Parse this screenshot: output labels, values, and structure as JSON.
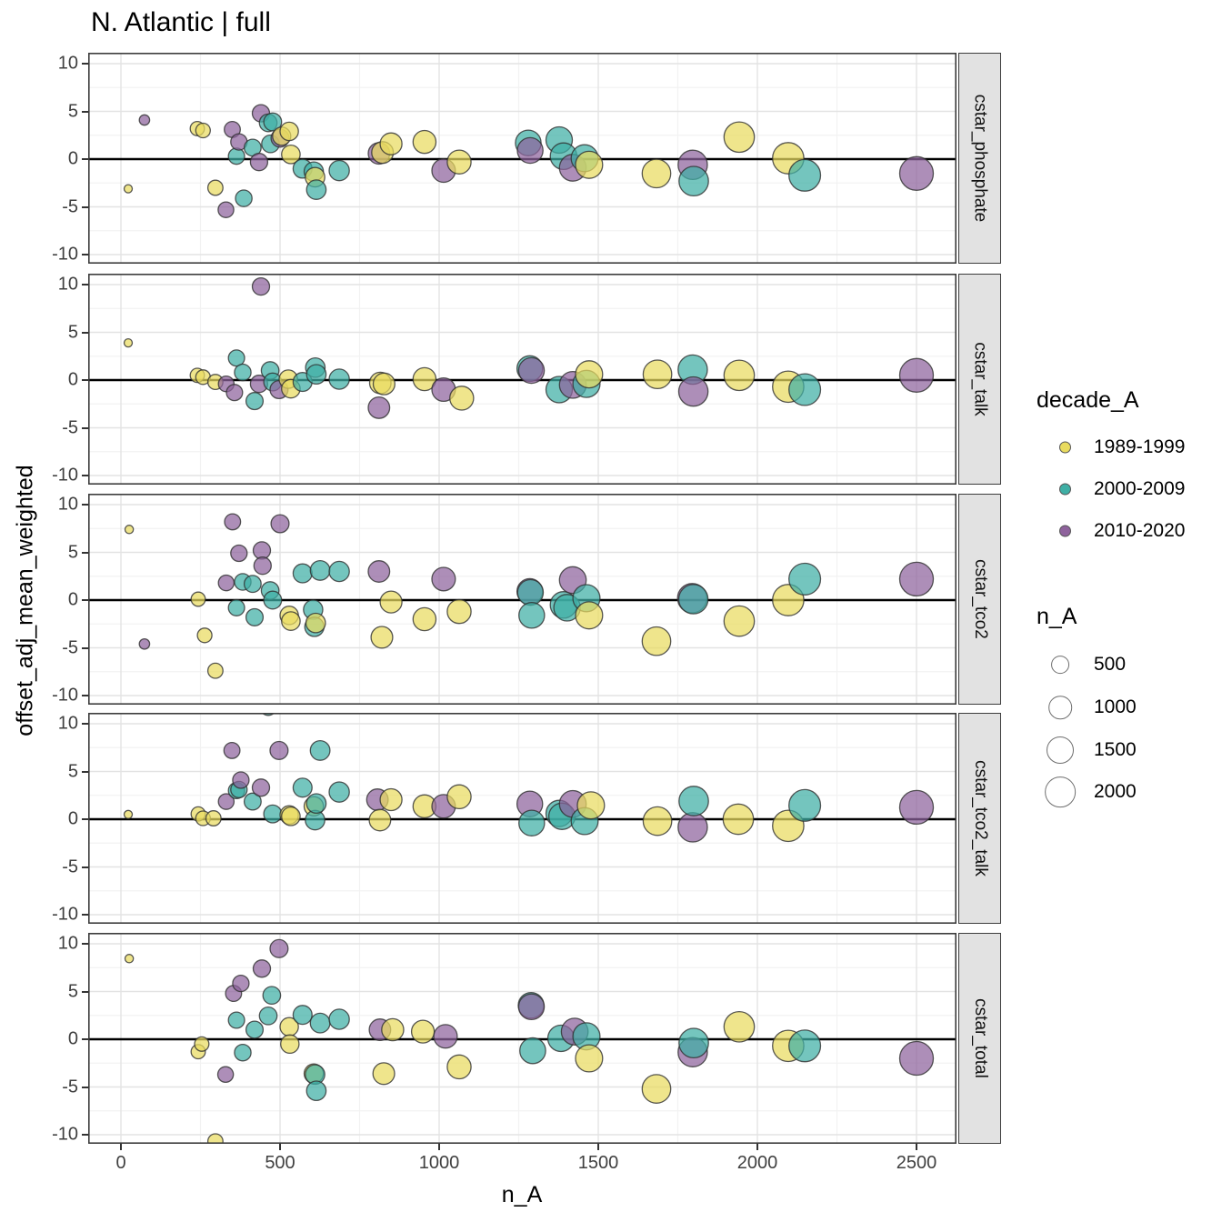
{
  "title": "N. Atlantic | full",
  "axes": {
    "x_label": "n_A",
    "y_label": "offset_adj_mean_weighted",
    "x_ticks": [
      0,
      500,
      1000,
      1500,
      2000,
      2500
    ],
    "y_ticks": [
      10,
      5,
      0,
      -5,
      -10
    ]
  },
  "legend": {
    "decade_title": "decade_A",
    "decades": [
      {
        "label": "1989-1999",
        "color": "#e9db5f"
      },
      {
        "label": "2000-2009",
        "color": "#3fafa5"
      },
      {
        "label": "2010-2020",
        "color": "#8e629c"
      }
    ],
    "size_title": "n_A",
    "sizes": [
      {
        "label": "500",
        "value": 500
      },
      {
        "label": "1000",
        "value": 1000
      },
      {
        "label": "1500",
        "value": 1500
      },
      {
        "label": "2000",
        "value": 2000
      }
    ]
  },
  "chart_data": {
    "type": "scatter",
    "title": "N. Atlantic | full",
    "xlabel": "n_A",
    "ylabel": "offset_adj_mean_weighted",
    "xlim": [
      -100,
      2626
    ],
    "ylim": [
      -11,
      11.1
    ],
    "grid": true,
    "zero_line": true,
    "size_encoding": "point size = n_A (same as x value)",
    "decade_names": [
      "1989-1999",
      "2000-2009",
      "2010-2020"
    ],
    "point_format": "[n_A, offset_adj_mean_weighted, decade_index]",
    "facets": [
      {
        "label": "cstar_phosphate",
        "points": [
          [
            23,
            -3.1,
            0
          ],
          [
            74,
            4.1,
            2
          ],
          [
            240,
            3.2,
            0
          ],
          [
            258,
            3.0,
            0
          ],
          [
            297,
            -3.0,
            0
          ],
          [
            330,
            -5.3,
            2
          ],
          [
            350,
            3.1,
            2
          ],
          [
            363,
            0.3,
            1
          ],
          [
            371,
            1.8,
            2
          ],
          [
            386,
            -4.1,
            1
          ],
          [
            414,
            1.2,
            1
          ],
          [
            434,
            -0.3,
            2
          ],
          [
            440,
            4.8,
            2
          ],
          [
            463,
            3.8,
            1
          ],
          [
            470,
            1.6,
            1
          ],
          [
            477,
            3.9,
            1
          ],
          [
            500,
            2.2,
            2
          ],
          [
            505,
            2.4,
            0
          ],
          [
            529,
            2.9,
            0
          ],
          [
            534,
            0.5,
            0
          ],
          [
            571,
            -1.0,
            1
          ],
          [
            606,
            -1.3,
            1
          ],
          [
            610,
            -1.9,
            0
          ],
          [
            614,
            -3.2,
            1
          ],
          [
            686,
            -1.2,
            1
          ],
          [
            811,
            0.6,
            2
          ],
          [
            822,
            0.7,
            0
          ],
          [
            849,
            1.6,
            0
          ],
          [
            954,
            1.8,
            0
          ],
          [
            1014,
            -1.2,
            2
          ],
          [
            1063,
            -0.3,
            0
          ],
          [
            1280,
            1.7,
            1
          ],
          [
            1286,
            0.9,
            2
          ],
          [
            1377,
            2.0,
            1
          ],
          [
            1391,
            0.3,
            1
          ],
          [
            1420,
            -0.9,
            2
          ],
          [
            1457,
            0.1,
            1
          ],
          [
            1471,
            -0.6,
            0
          ],
          [
            1683,
            -1.5,
            0
          ],
          [
            1797,
            -0.6,
            2
          ],
          [
            1800,
            -2.3,
            1
          ],
          [
            1943,
            2.3,
            0
          ],
          [
            2097,
            0.1,
            0
          ],
          [
            2149,
            -1.7,
            1
          ],
          [
            2500,
            -1.5,
            2
          ]
        ]
      },
      {
        "label": "cstar_talk",
        "points": [
          [
            23,
            3.9,
            0
          ],
          [
            240,
            0.5,
            0
          ],
          [
            258,
            0.3,
            0
          ],
          [
            297,
            -0.2,
            0
          ],
          [
            331,
            -0.4,
            2
          ],
          [
            357,
            -1.3,
            2
          ],
          [
            363,
            2.3,
            1
          ],
          [
            383,
            0.8,
            1
          ],
          [
            420,
            -2.2,
            1
          ],
          [
            434,
            -0.4,
            2
          ],
          [
            440,
            9.8,
            2
          ],
          [
            469,
            1.0,
            1
          ],
          [
            477,
            -0.2,
            1
          ],
          [
            497,
            -1.0,
            2
          ],
          [
            526,
            0.1,
            0
          ],
          [
            534,
            -0.9,
            0
          ],
          [
            571,
            -0.2,
            1
          ],
          [
            611,
            1.3,
            1
          ],
          [
            614,
            0.6,
            1
          ],
          [
            686,
            0.1,
            1
          ],
          [
            811,
            -2.9,
            2
          ],
          [
            815,
            -0.3,
            0
          ],
          [
            827,
            -0.4,
            0
          ],
          [
            954,
            0.1,
            0
          ],
          [
            1014,
            -1.0,
            2
          ],
          [
            1071,
            -1.9,
            0
          ],
          [
            1285,
            1.2,
            1
          ],
          [
            1290,
            1.0,
            2
          ],
          [
            1377,
            -1.0,
            1
          ],
          [
            1420,
            -0.5,
            2
          ],
          [
            1463,
            -0.4,
            1
          ],
          [
            1471,
            0.6,
            0
          ],
          [
            1686,
            0.6,
            0
          ],
          [
            1797,
            1.1,
            1
          ],
          [
            1799,
            -1.2,
            2
          ],
          [
            1943,
            0.5,
            0
          ],
          [
            2097,
            -0.7,
            0
          ],
          [
            2149,
            -1.0,
            1
          ],
          [
            2500,
            0.5,
            2
          ]
        ]
      },
      {
        "label": "cstar_tco2",
        "points": [
          [
            26,
            7.4,
            0
          ],
          [
            74,
            -4.6,
            2
          ],
          [
            243,
            0.1,
            0
          ],
          [
            263,
            -3.7,
            0
          ],
          [
            297,
            -7.4,
            0
          ],
          [
            331,
            1.8,
            2
          ],
          [
            351,
            8.2,
            2
          ],
          [
            363,
            -0.8,
            1
          ],
          [
            371,
            4.9,
            2
          ],
          [
            383,
            1.9,
            1
          ],
          [
            414,
            1.7,
            1
          ],
          [
            420,
            -1.8,
            1
          ],
          [
            443,
            5.2,
            2
          ],
          [
            445,
            3.6,
            2
          ],
          [
            469,
            1.0,
            1
          ],
          [
            477,
            0.0,
            1
          ],
          [
            500,
            8.0,
            2
          ],
          [
            529,
            -1.6,
            0
          ],
          [
            534,
            -2.2,
            0
          ],
          [
            571,
            2.8,
            1
          ],
          [
            604,
            -1.0,
            1
          ],
          [
            608,
            -2.8,
            1
          ],
          [
            612,
            -2.4,
            0
          ],
          [
            626,
            3.1,
            1
          ],
          [
            686,
            3.0,
            1
          ],
          [
            811,
            3.0,
            2
          ],
          [
            820,
            -3.9,
            0
          ],
          [
            849,
            -0.2,
            0
          ],
          [
            954,
            -2.0,
            0
          ],
          [
            1014,
            2.2,
            2
          ],
          [
            1063,
            -1.2,
            0
          ],
          [
            1285,
            0.9,
            2
          ],
          [
            1287,
            0.8,
            1
          ],
          [
            1291,
            -1.6,
            1
          ],
          [
            1391,
            -0.5,
            1
          ],
          [
            1402,
            -0.8,
            1
          ],
          [
            1420,
            2.1,
            2
          ],
          [
            1463,
            0.2,
            1
          ],
          [
            1471,
            -1.6,
            0
          ],
          [
            1683,
            -4.3,
            0
          ],
          [
            1795,
            0.2,
            2
          ],
          [
            1799,
            0.1,
            1
          ],
          [
            1943,
            -2.2,
            0
          ],
          [
            2097,
            0.0,
            0
          ],
          [
            2149,
            2.2,
            1
          ],
          [
            2500,
            2.2,
            2
          ]
        ]
      },
      {
        "label": "cstar_tco2_talk",
        "points": [
          [
            23,
            0.5,
            0
          ],
          [
            243,
            0.55,
            0
          ],
          [
            258,
            0.1,
            0
          ],
          [
            291,
            0.1,
            0
          ],
          [
            331,
            1.85,
            2
          ],
          [
            349,
            7.2,
            2
          ],
          [
            363,
            3.0,
            1
          ],
          [
            371,
            3.1,
            1
          ],
          [
            377,
            4.1,
            2
          ],
          [
            414,
            1.85,
            1
          ],
          [
            440,
            3.3,
            2
          ],
          [
            463,
            11.8,
            1
          ],
          [
            477,
            0.55,
            1
          ],
          [
            497,
            7.2,
            2
          ],
          [
            529,
            0.45,
            0
          ],
          [
            534,
            0.3,
            0
          ],
          [
            571,
            3.3,
            1
          ],
          [
            606,
            1.35,
            0
          ],
          [
            610,
            -0.1,
            1
          ],
          [
            614,
            1.65,
            1
          ],
          [
            626,
            7.2,
            1
          ],
          [
            686,
            2.85,
            1
          ],
          [
            806,
            2.05,
            2
          ],
          [
            814,
            -0.1,
            0
          ],
          [
            849,
            2.05,
            0
          ],
          [
            954,
            1.35,
            0
          ],
          [
            1014,
            1.35,
            2
          ],
          [
            1063,
            2.35,
            0
          ],
          [
            1285,
            1.6,
            2
          ],
          [
            1291,
            -0.4,
            1
          ],
          [
            1377,
            0.6,
            1
          ],
          [
            1386,
            0.3,
            1
          ],
          [
            1420,
            1.6,
            2
          ],
          [
            1457,
            -0.2,
            1
          ],
          [
            1477,
            1.45,
            0
          ],
          [
            1686,
            -0.2,
            0
          ],
          [
            1797,
            -0.85,
            2
          ],
          [
            1800,
            1.9,
            1
          ],
          [
            1940,
            0.0,
            0
          ],
          [
            2097,
            -0.7,
            0
          ],
          [
            2149,
            1.45,
            1
          ],
          [
            2500,
            1.25,
            2
          ]
        ]
      },
      {
        "label": "cstar_total",
        "points": [
          [
            26,
            8.45,
            0
          ],
          [
            243,
            -1.3,
            0
          ],
          [
            254,
            -0.5,
            0
          ],
          [
            297,
            -10.7,
            0
          ],
          [
            329,
            -3.7,
            2
          ],
          [
            354,
            4.8,
            2
          ],
          [
            363,
            2.0,
            1
          ],
          [
            377,
            5.85,
            2
          ],
          [
            383,
            -1.4,
            1
          ],
          [
            420,
            1.0,
            1
          ],
          [
            443,
            7.4,
            2
          ],
          [
            463,
            2.45,
            1
          ],
          [
            474,
            4.6,
            1
          ],
          [
            497,
            9.5,
            2
          ],
          [
            529,
            1.3,
            0
          ],
          [
            531,
            -0.5,
            0
          ],
          [
            571,
            2.55,
            1
          ],
          [
            606,
            -3.6,
            0
          ],
          [
            610,
            -3.7,
            1
          ],
          [
            614,
            -5.4,
            1
          ],
          [
            626,
            1.7,
            1
          ],
          [
            686,
            2.1,
            1
          ],
          [
            814,
            1.0,
            2
          ],
          [
            826,
            -3.6,
            0
          ],
          [
            854,
            1.0,
            0
          ],
          [
            949,
            0.8,
            0
          ],
          [
            1020,
            0.3,
            2
          ],
          [
            1063,
            -2.9,
            0
          ],
          [
            1289,
            3.55,
            1
          ],
          [
            1290,
            3.4,
            2
          ],
          [
            1294,
            -1.2,
            1
          ],
          [
            1383,
            0.1,
            1
          ],
          [
            1426,
            0.8,
            2
          ],
          [
            1463,
            0.3,
            1
          ],
          [
            1471,
            -2.0,
            0
          ],
          [
            1683,
            -5.2,
            0
          ],
          [
            1797,
            -1.35,
            2
          ],
          [
            1800,
            -0.4,
            1
          ],
          [
            1943,
            1.3,
            0
          ],
          [
            2097,
            -0.7,
            0
          ],
          [
            2149,
            -0.7,
            1
          ],
          [
            2500,
            -2.0,
            2
          ]
        ]
      }
    ]
  }
}
